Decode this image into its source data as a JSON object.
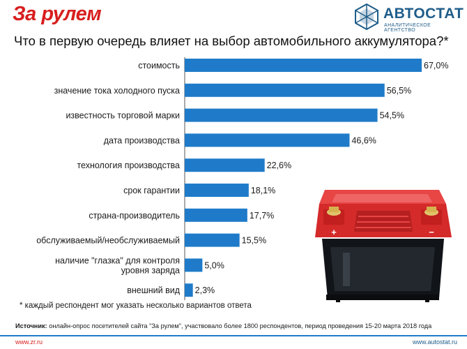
{
  "header": {
    "brand_left": "За рулем",
    "brand_right": "АВТОСТАТ",
    "brand_right_tagline": "АНАЛИТИЧЕСКОЕ АГЕНТСТВО"
  },
  "colors": {
    "bar": "#1f7bc9",
    "brand_red": "#d81e1e",
    "brand_blue": "#1f5d8a"
  },
  "chart_data": {
    "type": "bar",
    "orientation": "horizontal",
    "title": "Что в первую очередь влияет на выбор автомобильного аккумулятора?*",
    "unit": "%",
    "xlim": [
      0,
      67
    ],
    "categories": [
      [
        "стоимость"
      ],
      [
        "значение тока холодного пуска"
      ],
      [
        "известность торговой марки"
      ],
      [
        "дата производства"
      ],
      [
        "технология производства"
      ],
      [
        "срок гарантии"
      ],
      [
        "страна-производитель"
      ],
      [
        "обслуживаемый/необслуживаемый"
      ],
      [
        "наличие \"глазка\" для контроля",
        "уровня заряда"
      ],
      [
        "внешний вид"
      ]
    ],
    "values": [
      67.0,
      56.5,
      54.5,
      46.6,
      22.6,
      18.1,
      17.7,
      15.5,
      5.0,
      2.3
    ],
    "value_labels": [
      "67,0%",
      "56,5%",
      "54,5%",
      "46,6%",
      "22,6%",
      "18,1%",
      "17,7%",
      "15,5%",
      "5,0%",
      "2,3%"
    ]
  },
  "footnote": "* каждый респондент мог указать несколько вариантов ответа",
  "source": {
    "label": "Источник:",
    "text": "онлайн-опрос посетителей сайта \"За рулем\", участвовало более 1800 респондентов, период проведения 15-20 марта 2018 года"
  },
  "footer": {
    "left_url": "www.zr.ru",
    "right_url": "www.autostat.ru"
  },
  "illustration": {
    "battery_plus": "+",
    "battery_minus": "−"
  }
}
